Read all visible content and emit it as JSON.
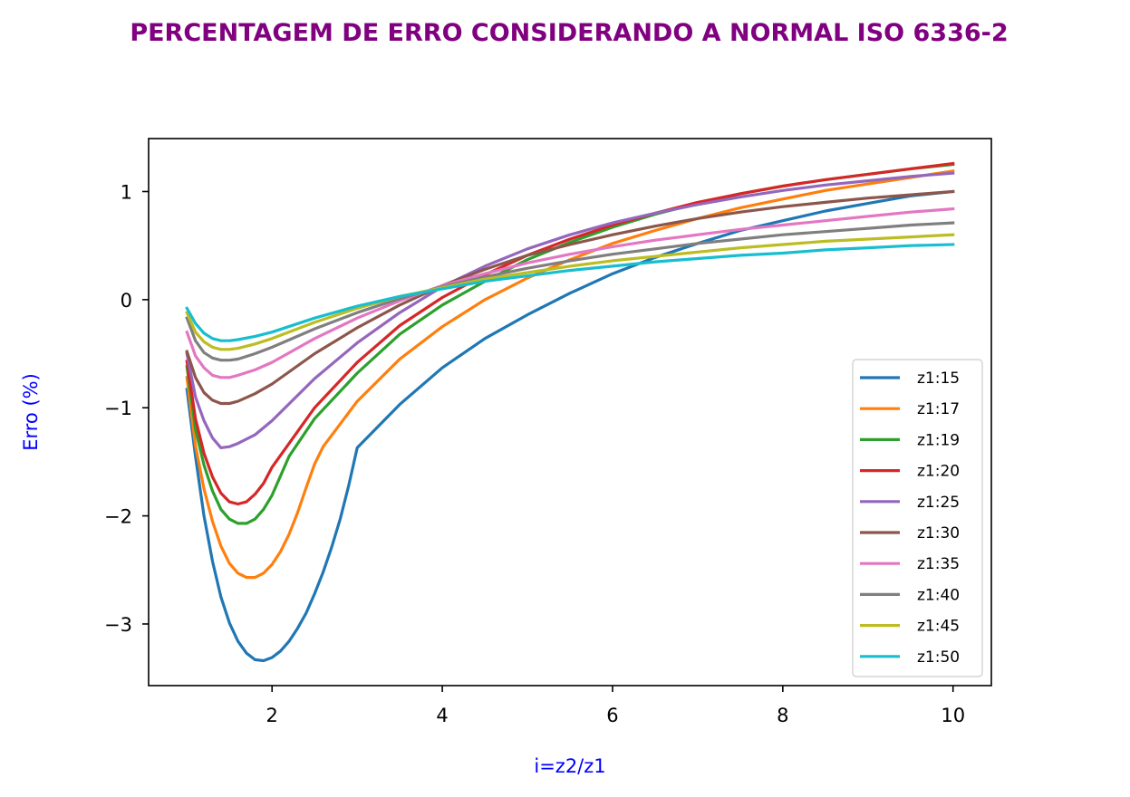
{
  "chart_data": {
    "type": "line",
    "title": "PERCENTAGEM DE ERRO CONSIDERANDO A NORMAL ISO 6336-2",
    "xlabel": "i=z2/z1",
    "ylabel": "Erro (%)",
    "xlim": [
      0.55,
      10.45
    ],
    "ylim": [
      -3.57,
      1.49
    ],
    "xticks": [
      2,
      4,
      6,
      8,
      10
    ],
    "xtick_labels": [
      "2",
      "4",
      "6",
      "8",
      "10"
    ],
    "yticks": [
      1,
      0,
      -1,
      -2,
      -3
    ],
    "ytick_labels": [
      "1",
      "0",
      "−1",
      "−2",
      "−3"
    ],
    "grid": false,
    "legend_position": "lower-right",
    "series": [
      {
        "name": "z1:15",
        "color": "#1f77b4",
        "points": [
          [
            1.0,
            -0.83
          ],
          [
            1.1,
            -1.45
          ],
          [
            1.2,
            -2.0
          ],
          [
            1.3,
            -2.42
          ],
          [
            1.4,
            -2.75
          ],
          [
            1.5,
            -2.99
          ],
          [
            1.6,
            -3.16
          ],
          [
            1.7,
            -3.27
          ],
          [
            1.8,
            -3.33
          ],
          [
            1.9,
            -3.34
          ],
          [
            2.0,
            -3.31
          ],
          [
            2.1,
            -3.25
          ],
          [
            2.2,
            -3.16
          ],
          [
            2.3,
            -3.04
          ],
          [
            2.4,
            -2.9
          ],
          [
            2.5,
            -2.72
          ],
          [
            2.6,
            -2.52
          ],
          [
            2.7,
            -2.29
          ],
          [
            2.8,
            -2.03
          ],
          [
            2.9,
            -1.72
          ],
          [
            3.0,
            -1.37
          ],
          [
            3.5,
            -0.97
          ],
          [
            4.0,
            -0.63
          ],
          [
            4.5,
            -0.36
          ],
          [
            5.0,
            -0.14
          ],
          [
            5.5,
            0.06
          ],
          [
            6.0,
            0.24
          ],
          [
            6.5,
            0.39
          ],
          [
            7.0,
            0.52
          ],
          [
            7.5,
            0.64
          ],
          [
            8.0,
            0.73
          ],
          [
            8.5,
            0.82
          ],
          [
            9.0,
            0.89
          ],
          [
            9.5,
            0.96
          ],
          [
            10.0,
            1.0
          ]
        ]
      },
      {
        "name": "z1:17",
        "color": "#ff7f0e",
        "points": [
          [
            1.0,
            -0.72
          ],
          [
            1.1,
            -1.35
          ],
          [
            1.2,
            -1.75
          ],
          [
            1.3,
            -2.05
          ],
          [
            1.4,
            -2.28
          ],
          [
            1.5,
            -2.44
          ],
          [
            1.6,
            -2.53
          ],
          [
            1.7,
            -2.57
          ],
          [
            1.8,
            -2.57
          ],
          [
            1.9,
            -2.53
          ],
          [
            2.0,
            -2.45
          ],
          [
            2.1,
            -2.33
          ],
          [
            2.2,
            -2.17
          ],
          [
            2.3,
            -1.97
          ],
          [
            2.4,
            -1.74
          ],
          [
            2.5,
            -1.52
          ],
          [
            2.6,
            -1.36
          ],
          [
            3.0,
            -0.94
          ],
          [
            3.5,
            -0.55
          ],
          [
            4.0,
            -0.25
          ],
          [
            4.5,
            0.0
          ],
          [
            5.0,
            0.2
          ],
          [
            5.5,
            0.37
          ],
          [
            6.0,
            0.52
          ],
          [
            6.5,
            0.64
          ],
          [
            7.0,
            0.75
          ],
          [
            7.5,
            0.85
          ],
          [
            8.0,
            0.93
          ],
          [
            8.5,
            1.01
          ],
          [
            9.0,
            1.07
          ],
          [
            9.5,
            1.13
          ],
          [
            10.0,
            1.19
          ]
        ]
      },
      {
        "name": "z1:19",
        "color": "#2ca02c",
        "points": [
          [
            1.0,
            -0.62
          ],
          [
            1.1,
            -1.2
          ],
          [
            1.2,
            -1.53
          ],
          [
            1.3,
            -1.77
          ],
          [
            1.4,
            -1.94
          ],
          [
            1.5,
            -2.03
          ],
          [
            1.6,
            -2.07
          ],
          [
            1.7,
            -2.07
          ],
          [
            1.8,
            -2.03
          ],
          [
            1.9,
            -1.94
          ],
          [
            2.0,
            -1.81
          ],
          [
            2.1,
            -1.63
          ],
          [
            2.2,
            -1.45
          ],
          [
            2.5,
            -1.1
          ],
          [
            3.0,
            -0.68
          ],
          [
            3.5,
            -0.32
          ],
          [
            4.0,
            -0.05
          ],
          [
            4.5,
            0.17
          ],
          [
            5.0,
            0.37
          ],
          [
            5.5,
            0.53
          ],
          [
            6.0,
            0.67
          ],
          [
            6.5,
            0.79
          ],
          [
            7.0,
            0.89
          ],
          [
            7.5,
            0.98
          ],
          [
            8.0,
            1.05
          ],
          [
            8.5,
            1.11
          ],
          [
            9.0,
            1.16
          ],
          [
            9.5,
            1.21
          ],
          [
            10.0,
            1.25
          ]
        ]
      },
      {
        "name": "z1:20",
        "color": "#d62728",
        "points": [
          [
            1.0,
            -0.57
          ],
          [
            1.1,
            -1.1
          ],
          [
            1.2,
            -1.42
          ],
          [
            1.3,
            -1.64
          ],
          [
            1.4,
            -1.79
          ],
          [
            1.5,
            -1.87
          ],
          [
            1.6,
            -1.89
          ],
          [
            1.7,
            -1.87
          ],
          [
            1.8,
            -1.8
          ],
          [
            1.9,
            -1.7
          ],
          [
            2.0,
            -1.55
          ],
          [
            2.5,
            -1.0
          ],
          [
            3.0,
            -0.58
          ],
          [
            3.5,
            -0.24
          ],
          [
            4.0,
            0.02
          ],
          [
            4.5,
            0.23
          ],
          [
            5.0,
            0.41
          ],
          [
            5.5,
            0.56
          ],
          [
            6.0,
            0.69
          ],
          [
            6.5,
            0.8
          ],
          [
            7.0,
            0.9
          ],
          [
            7.5,
            0.98
          ],
          [
            8.0,
            1.05
          ],
          [
            8.5,
            1.11
          ],
          [
            9.0,
            1.16
          ],
          [
            9.5,
            1.21
          ],
          [
            10.0,
            1.26
          ]
        ]
      },
      {
        "name": "z1:25",
        "color": "#9467bd",
        "points": [
          [
            1.0,
            -0.5
          ],
          [
            1.1,
            -0.9
          ],
          [
            1.2,
            -1.12
          ],
          [
            1.3,
            -1.28
          ],
          [
            1.4,
            -1.37
          ],
          [
            1.5,
            -1.36
          ],
          [
            1.6,
            -1.33
          ],
          [
            1.8,
            -1.25
          ],
          [
            2.0,
            -1.12
          ],
          [
            2.5,
            -0.73
          ],
          [
            3.0,
            -0.4
          ],
          [
            3.5,
            -0.12
          ],
          [
            4.0,
            0.12
          ],
          [
            4.5,
            0.31
          ],
          [
            5.0,
            0.47
          ],
          [
            5.5,
            0.6
          ],
          [
            6.0,
            0.71
          ],
          [
            6.5,
            0.8
          ],
          [
            7.0,
            0.88
          ],
          [
            7.5,
            0.95
          ],
          [
            8.0,
            1.01
          ],
          [
            8.5,
            1.06
          ],
          [
            9.0,
            1.1
          ],
          [
            9.5,
            1.14
          ],
          [
            10.0,
            1.17
          ]
        ]
      },
      {
        "name": "z1:30",
        "color": "#8c564b",
        "points": [
          [
            1.0,
            -0.48
          ],
          [
            1.1,
            -0.72
          ],
          [
            1.2,
            -0.86
          ],
          [
            1.3,
            -0.93
          ],
          [
            1.4,
            -0.96
          ],
          [
            1.5,
            -0.96
          ],
          [
            1.6,
            -0.94
          ],
          [
            1.8,
            -0.87
          ],
          [
            2.0,
            -0.78
          ],
          [
            2.5,
            -0.5
          ],
          [
            3.0,
            -0.26
          ],
          [
            3.5,
            -0.05
          ],
          [
            4.0,
            0.13
          ],
          [
            4.5,
            0.28
          ],
          [
            5.0,
            0.41
          ],
          [
            5.5,
            0.51
          ],
          [
            6.0,
            0.6
          ],
          [
            6.5,
            0.68
          ],
          [
            7.0,
            0.75
          ],
          [
            7.5,
            0.81
          ],
          [
            8.0,
            0.86
          ],
          [
            8.5,
            0.9
          ],
          [
            9.0,
            0.94
          ],
          [
            9.5,
            0.97
          ],
          [
            10.0,
            1.0
          ]
        ]
      },
      {
        "name": "z1:35",
        "color": "#e377c2",
        "points": [
          [
            1.0,
            -0.3
          ],
          [
            1.1,
            -0.52
          ],
          [
            1.2,
            -0.63
          ],
          [
            1.3,
            -0.7
          ],
          [
            1.4,
            -0.72
          ],
          [
            1.5,
            -0.72
          ],
          [
            1.6,
            -0.7
          ],
          [
            1.8,
            -0.65
          ],
          [
            2.0,
            -0.58
          ],
          [
            2.5,
            -0.36
          ],
          [
            3.0,
            -0.17
          ],
          [
            3.5,
            -0.01
          ],
          [
            4.0,
            0.13
          ],
          [
            4.5,
            0.24
          ],
          [
            5.0,
            0.34
          ],
          [
            5.5,
            0.42
          ],
          [
            6.0,
            0.49
          ],
          [
            6.5,
            0.55
          ],
          [
            7.0,
            0.6
          ],
          [
            7.5,
            0.65
          ],
          [
            8.0,
            0.69
          ],
          [
            8.5,
            0.73
          ],
          [
            9.0,
            0.77
          ],
          [
            9.5,
            0.81
          ],
          [
            10.0,
            0.84
          ]
        ]
      },
      {
        "name": "z1:40",
        "color": "#7f7f7f",
        "points": [
          [
            1.0,
            -0.17
          ],
          [
            1.1,
            -0.38
          ],
          [
            1.2,
            -0.49
          ],
          [
            1.3,
            -0.54
          ],
          [
            1.4,
            -0.56
          ],
          [
            1.5,
            -0.56
          ],
          [
            1.6,
            -0.55
          ],
          [
            1.8,
            -0.5
          ],
          [
            2.0,
            -0.44
          ],
          [
            2.5,
            -0.27
          ],
          [
            3.0,
            -0.12
          ],
          [
            3.5,
            0.01
          ],
          [
            4.0,
            0.12
          ],
          [
            4.5,
            0.21
          ],
          [
            5.0,
            0.29
          ],
          [
            5.5,
            0.36
          ],
          [
            6.0,
            0.42
          ],
          [
            6.5,
            0.47
          ],
          [
            7.0,
            0.52
          ],
          [
            7.5,
            0.56
          ],
          [
            8.0,
            0.6
          ],
          [
            8.5,
            0.63
          ],
          [
            9.0,
            0.66
          ],
          [
            9.5,
            0.69
          ],
          [
            10.0,
            0.71
          ]
        ]
      },
      {
        "name": "z1:45",
        "color": "#bcbd22",
        "points": [
          [
            1.0,
            -0.12
          ],
          [
            1.1,
            -0.3
          ],
          [
            1.2,
            -0.39
          ],
          [
            1.3,
            -0.44
          ],
          [
            1.4,
            -0.46
          ],
          [
            1.5,
            -0.46
          ],
          [
            1.6,
            -0.45
          ],
          [
            1.8,
            -0.41
          ],
          [
            2.0,
            -0.36
          ],
          [
            2.5,
            -0.21
          ],
          [
            3.0,
            -0.08
          ],
          [
            3.5,
            0.03
          ],
          [
            4.0,
            0.11
          ],
          [
            4.5,
            0.19
          ],
          [
            5.0,
            0.25
          ],
          [
            5.5,
            0.31
          ],
          [
            6.0,
            0.36
          ],
          [
            6.5,
            0.4
          ],
          [
            7.0,
            0.44
          ],
          [
            7.5,
            0.48
          ],
          [
            8.0,
            0.51
          ],
          [
            8.5,
            0.54
          ],
          [
            9.0,
            0.56
          ],
          [
            9.5,
            0.58
          ],
          [
            10.0,
            0.6
          ]
        ]
      },
      {
        "name": "z1:50",
        "color": "#17becf",
        "points": [
          [
            1.0,
            -0.08
          ],
          [
            1.1,
            -0.22
          ],
          [
            1.2,
            -0.31
          ],
          [
            1.3,
            -0.36
          ],
          [
            1.4,
            -0.38
          ],
          [
            1.5,
            -0.38
          ],
          [
            1.6,
            -0.37
          ],
          [
            1.8,
            -0.34
          ],
          [
            2.0,
            -0.3
          ],
          [
            2.5,
            -0.17
          ],
          [
            3.0,
            -0.06
          ],
          [
            3.5,
            0.03
          ],
          [
            4.0,
            0.1
          ],
          [
            4.5,
            0.17
          ],
          [
            5.0,
            0.22
          ],
          [
            5.5,
            0.27
          ],
          [
            6.0,
            0.31
          ],
          [
            6.5,
            0.35
          ],
          [
            7.0,
            0.38
          ],
          [
            7.5,
            0.41
          ],
          [
            8.0,
            0.43
          ],
          [
            8.5,
            0.46
          ],
          [
            9.0,
            0.48
          ],
          [
            9.5,
            0.5
          ],
          [
            10.0,
            0.51
          ]
        ]
      }
    ]
  }
}
